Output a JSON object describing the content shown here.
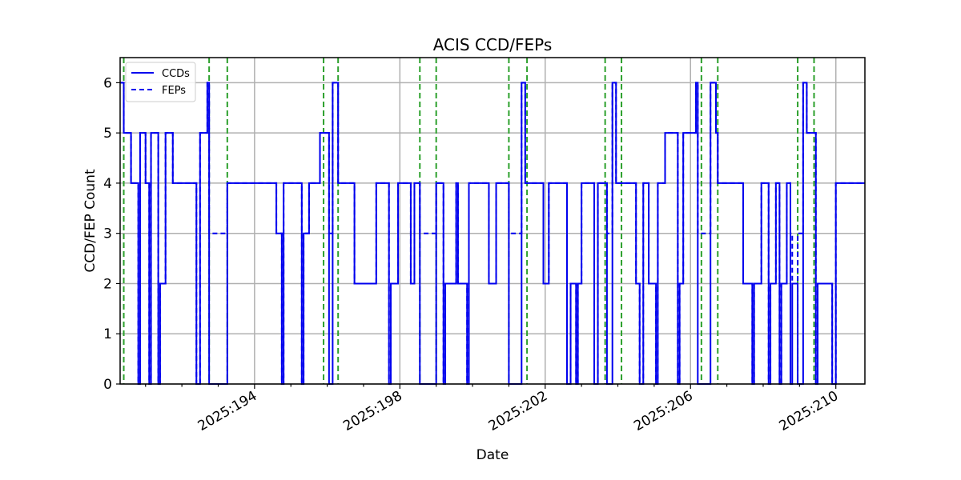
{
  "chart_data": {
    "type": "line",
    "title": "ACIS CCD/FEPs",
    "xlabel": "Date",
    "ylabel": "CCD/FEP Count",
    "xlim": [
      190.3,
      210.8
    ],
    "ylim": [
      0,
      6.5
    ],
    "x_unit": "day of year 2025",
    "x_ticks": [
      194,
      198,
      202,
      206,
      210
    ],
    "x_tick_labels": [
      "2025:194",
      "2025:198",
      "2025:202",
      "2025:206",
      "2025:210"
    ],
    "y_ticks": [
      0,
      1,
      2,
      3,
      4,
      5,
      6
    ],
    "y_tick_labels": [
      "0",
      "1",
      "2",
      "3",
      "4",
      "5",
      "6"
    ],
    "grid": true,
    "legend": {
      "location": "top-left",
      "entries": [
        "CCDs",
        "FEPs"
      ]
    },
    "colors": {
      "series": "#0000ee",
      "markers": "#2ca02c",
      "grid": "#b0b0b0"
    },
    "series": [
      {
        "name": "CCDs",
        "style": "solid",
        "steps": [
          [
            190.3,
            6
          ],
          [
            190.4,
            5
          ],
          [
            190.6,
            4
          ],
          [
            190.8,
            0
          ],
          [
            190.85,
            5
          ],
          [
            191.0,
            4
          ],
          [
            191.1,
            0
          ],
          [
            191.15,
            5
          ],
          [
            191.35,
            0
          ],
          [
            191.4,
            2
          ],
          [
            191.55,
            5
          ],
          [
            191.75,
            4
          ],
          [
            192.4,
            0
          ],
          [
            192.5,
            5
          ],
          [
            192.7,
            6
          ],
          [
            192.75,
            0
          ],
          [
            193.25,
            4
          ],
          [
            194.6,
            3
          ],
          [
            194.75,
            0
          ],
          [
            194.8,
            4
          ],
          [
            195.3,
            0
          ],
          [
            195.35,
            3
          ],
          [
            195.5,
            4
          ],
          [
            195.8,
            5
          ],
          [
            196.05,
            0
          ],
          [
            196.15,
            6
          ],
          [
            196.3,
            4
          ],
          [
            196.75,
            2
          ],
          [
            197.35,
            4
          ],
          [
            197.7,
            0
          ],
          [
            197.75,
            2
          ],
          [
            197.95,
            4
          ],
          [
            198.3,
            2
          ],
          [
            198.4,
            4
          ],
          [
            198.55,
            0
          ],
          [
            199.0,
            4
          ],
          [
            199.2,
            0
          ],
          [
            199.25,
            2
          ],
          [
            199.55,
            4
          ],
          [
            199.6,
            2
          ],
          [
            199.85,
            0
          ],
          [
            199.9,
            4
          ],
          [
            200.45,
            2
          ],
          [
            200.65,
            4
          ],
          [
            201.0,
            0
          ],
          [
            201.35,
            6
          ],
          [
            201.45,
            4
          ],
          [
            201.95,
            2
          ],
          [
            202.1,
            4
          ],
          [
            202.6,
            0
          ],
          [
            202.7,
            2
          ],
          [
            202.85,
            0
          ],
          [
            202.9,
            2
          ],
          [
            203.0,
            4
          ],
          [
            203.35,
            0
          ],
          [
            203.45,
            4
          ],
          [
            203.7,
            0
          ],
          [
            203.85,
            6
          ],
          [
            203.95,
            4
          ],
          [
            204.5,
            2
          ],
          [
            204.6,
            0
          ],
          [
            204.7,
            4
          ],
          [
            204.85,
            2
          ],
          [
            205.05,
            0
          ],
          [
            205.1,
            4
          ],
          [
            205.3,
            5
          ],
          [
            205.65,
            0
          ],
          [
            205.7,
            2
          ],
          [
            205.8,
            5
          ],
          [
            206.15,
            6
          ],
          [
            206.2,
            0
          ],
          [
            206.55,
            6
          ],
          [
            206.7,
            5
          ],
          [
            206.75,
            4
          ],
          [
            207.45,
            2
          ],
          [
            207.7,
            0
          ],
          [
            207.75,
            2
          ],
          [
            207.95,
            4
          ],
          [
            208.15,
            0
          ],
          [
            208.2,
            2
          ],
          [
            208.35,
            4
          ],
          [
            208.45,
            0
          ],
          [
            208.5,
            2
          ],
          [
            208.65,
            4
          ],
          [
            208.75,
            0
          ],
          [
            208.8,
            2
          ],
          [
            208.95,
            0
          ],
          [
            209.1,
            6
          ],
          [
            209.2,
            5
          ],
          [
            209.45,
            0
          ],
          [
            209.5,
            2
          ],
          [
            209.9,
            0
          ],
          [
            210.0,
            4
          ],
          [
            210.8,
            4
          ]
        ]
      },
      {
        "name": "FEPs",
        "style": "dashed",
        "steps": [
          [
            190.3,
            6
          ],
          [
            190.4,
            5
          ],
          [
            190.6,
            4
          ],
          [
            190.8,
            0
          ],
          [
            190.85,
            5
          ],
          [
            191.0,
            4
          ],
          [
            191.1,
            0
          ],
          [
            191.15,
            5
          ],
          [
            191.35,
            0
          ],
          [
            191.4,
            2
          ],
          [
            191.55,
            5
          ],
          [
            191.75,
            4
          ],
          [
            192.4,
            0
          ],
          [
            192.5,
            5
          ],
          [
            192.7,
            6
          ],
          [
            192.75,
            3
          ],
          [
            193.25,
            4
          ],
          [
            194.6,
            3
          ],
          [
            194.75,
            0
          ],
          [
            194.8,
            4
          ],
          [
            195.3,
            0
          ],
          [
            195.35,
            3
          ],
          [
            195.5,
            4
          ],
          [
            195.8,
            5
          ],
          [
            196.05,
            3
          ],
          [
            196.15,
            6
          ],
          [
            196.3,
            4
          ],
          [
            196.75,
            2
          ],
          [
            197.35,
            4
          ],
          [
            197.7,
            0
          ],
          [
            197.75,
            2
          ],
          [
            197.95,
            4
          ],
          [
            198.3,
            2
          ],
          [
            198.4,
            4
          ],
          [
            198.55,
            3
          ],
          [
            199.0,
            4
          ],
          [
            199.2,
            0
          ],
          [
            199.25,
            2
          ],
          [
            199.55,
            4
          ],
          [
            199.6,
            2
          ],
          [
            199.85,
            0
          ],
          [
            199.9,
            4
          ],
          [
            200.45,
            2
          ],
          [
            200.65,
            4
          ],
          [
            201.0,
            3
          ],
          [
            201.35,
            6
          ],
          [
            201.45,
            4
          ],
          [
            201.95,
            2
          ],
          [
            202.1,
            4
          ],
          [
            202.6,
            0
          ],
          [
            202.7,
            2
          ],
          [
            202.85,
            0
          ],
          [
            202.9,
            2
          ],
          [
            203.0,
            4
          ],
          [
            203.35,
            0
          ],
          [
            203.45,
            4
          ],
          [
            203.7,
            3
          ],
          [
            203.85,
            6
          ],
          [
            203.95,
            4
          ],
          [
            204.5,
            2
          ],
          [
            204.6,
            0
          ],
          [
            204.7,
            4
          ],
          [
            204.85,
            2
          ],
          [
            205.05,
            0
          ],
          [
            205.1,
            4
          ],
          [
            205.3,
            5
          ],
          [
            205.65,
            0
          ],
          [
            205.7,
            2
          ],
          [
            205.8,
            5
          ],
          [
            206.15,
            6
          ],
          [
            206.2,
            3
          ],
          [
            206.55,
            6
          ],
          [
            206.7,
            5
          ],
          [
            206.75,
            4
          ],
          [
            207.45,
            2
          ],
          [
            207.7,
            0
          ],
          [
            207.75,
            2
          ],
          [
            207.95,
            4
          ],
          [
            208.15,
            0
          ],
          [
            208.2,
            2
          ],
          [
            208.35,
            4
          ],
          [
            208.45,
            0
          ],
          [
            208.5,
            2
          ],
          [
            208.65,
            4
          ],
          [
            208.75,
            3
          ],
          [
            208.8,
            2
          ],
          [
            208.95,
            3
          ],
          [
            209.1,
            6
          ],
          [
            209.2,
            5
          ],
          [
            209.45,
            0
          ],
          [
            209.5,
            2
          ],
          [
            209.9,
            0
          ],
          [
            210.0,
            4
          ],
          [
            210.8,
            4
          ]
        ]
      }
    ],
    "event_lines": [
      190.4,
      192.75,
      193.25,
      195.9,
      196.3,
      198.55,
      199.0,
      201.0,
      201.5,
      203.65,
      204.1,
      206.3,
      206.75,
      208.95,
      209.4
    ]
  }
}
